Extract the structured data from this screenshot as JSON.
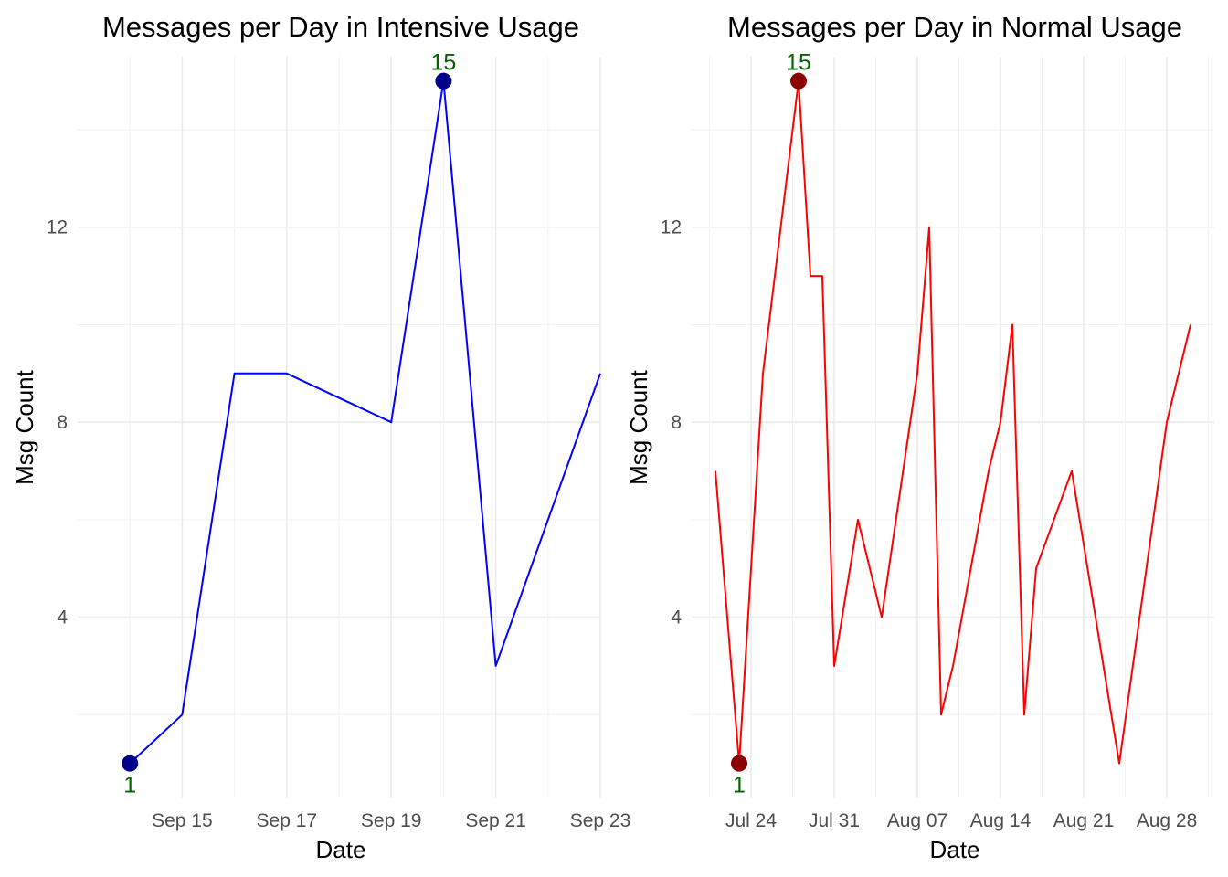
{
  "chart_data": [
    {
      "type": "line",
      "title": "Messages per Day in Intensive Usage",
      "xlabel": "Date",
      "ylabel": "Msg Count",
      "ylim": [
        0.3,
        15.5
      ],
      "yticks": [
        4,
        8,
        12
      ],
      "xlim": [
        "2023-09-13",
        "2023-09-23"
      ],
      "xticks": [
        {
          "date": "2023-09-15",
          "label": "Sep 15"
        },
        {
          "date": "2023-09-17",
          "label": "Sep 17"
        },
        {
          "date": "2023-09-19",
          "label": "Sep 19"
        },
        {
          "date": "2023-09-21",
          "label": "Sep 21"
        },
        {
          "date": "2023-09-23",
          "label": "Sep 23"
        }
      ],
      "series": [
        {
          "color": "#0000ff",
          "points": [
            {
              "date": "2023-09-14",
              "y": 1
            },
            {
              "date": "2023-09-15",
              "y": 2
            },
            {
              "date": "2023-09-16",
              "y": 9
            },
            {
              "date": "2023-09-17",
              "y": 9
            },
            {
              "date": "2023-09-19",
              "y": 8
            },
            {
              "date": "2023-09-20",
              "y": 15
            },
            {
              "date": "2023-09-21",
              "y": 3
            },
            {
              "date": "2023-09-23",
              "y": 9
            }
          ]
        }
      ],
      "highlights": [
        {
          "date": "2023-09-20",
          "y": 15,
          "label": "15",
          "point_color": "#00008b",
          "label_color": "#006400"
        },
        {
          "date": "2023-09-14",
          "y": 1,
          "label": "1",
          "point_color": "#00008b",
          "label_color": "#006400"
        }
      ],
      "grid": true,
      "legend": "none"
    },
    {
      "type": "line",
      "title": "Messages per Day in Normal Usage",
      "xlabel": "Date",
      "ylabel": "Msg Count",
      "ylim": [
        0.3,
        15.5
      ],
      "yticks": [
        4,
        8,
        12
      ],
      "xlim": [
        "2023-07-19",
        "2023-09-01"
      ],
      "xticks": [
        {
          "date": "2023-07-24",
          "label": "Jul 24"
        },
        {
          "date": "2023-07-31",
          "label": "Jul 31"
        },
        {
          "date": "2023-08-07",
          "label": "Aug 07"
        },
        {
          "date": "2023-08-14",
          "label": "Aug 14"
        },
        {
          "date": "2023-08-21",
          "label": "Aug 21"
        },
        {
          "date": "2023-08-28",
          "label": "Aug 28"
        }
      ],
      "series": [
        {
          "color": "#ff0000",
          "points": [
            {
              "date": "2023-07-21",
              "y": 7
            },
            {
              "date": "2023-07-23",
              "y": 1
            },
            {
              "date": "2023-07-25",
              "y": 9
            },
            {
              "date": "2023-07-28",
              "y": 15
            },
            {
              "date": "2023-07-29",
              "y": 11
            },
            {
              "date": "2023-07-30",
              "y": 11
            },
            {
              "date": "2023-07-31",
              "y": 3
            },
            {
              "date": "2023-08-02",
              "y": 6
            },
            {
              "date": "2023-08-04",
              "y": 4
            },
            {
              "date": "2023-08-07",
              "y": 9
            },
            {
              "date": "2023-08-08",
              "y": 12
            },
            {
              "date": "2023-08-09",
              "y": 2
            },
            {
              "date": "2023-08-10",
              "y": 3
            },
            {
              "date": "2023-08-13",
              "y": 7
            },
            {
              "date": "2023-08-14",
              "y": 8
            },
            {
              "date": "2023-08-15",
              "y": 10
            },
            {
              "date": "2023-08-16",
              "y": 2
            },
            {
              "date": "2023-08-17",
              "y": 5
            },
            {
              "date": "2023-08-20",
              "y": 7
            },
            {
              "date": "2023-08-24",
              "y": 1
            },
            {
              "date": "2023-08-28",
              "y": 8
            },
            {
              "date": "2023-08-30",
              "y": 10
            }
          ]
        }
      ],
      "highlights": [
        {
          "date": "2023-07-28",
          "y": 15,
          "label": "15",
          "point_color": "#8b0000",
          "label_color": "#006400"
        },
        {
          "date": "2023-07-23",
          "y": 1,
          "label": "1",
          "point_color": "#8b0000",
          "label_color": "#006400"
        }
      ],
      "grid": true,
      "legend": "none"
    }
  ]
}
